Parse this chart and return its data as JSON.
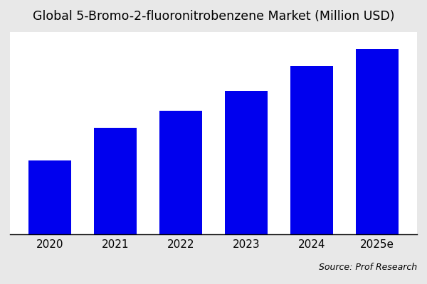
{
  "title": "Global 5-Bromo-2-fluoronitrobenzene Market (Million USD)",
  "categories": [
    "2020",
    "2021",
    "2022",
    "2023",
    "2024",
    "2025e"
  ],
  "values": [
    30,
    43,
    50,
    58,
    68,
    75
  ],
  "bar_color": "#0000EE",
  "figure_background_color": "#e8e8e8",
  "plot_background_color": "#ffffff",
  "source_text": "Source: Prof Research",
  "title_fontsize": 12.5,
  "tick_fontsize": 11,
  "source_fontsize": 9,
  "ylim": [
    0,
    82
  ],
  "bar_width": 0.65
}
